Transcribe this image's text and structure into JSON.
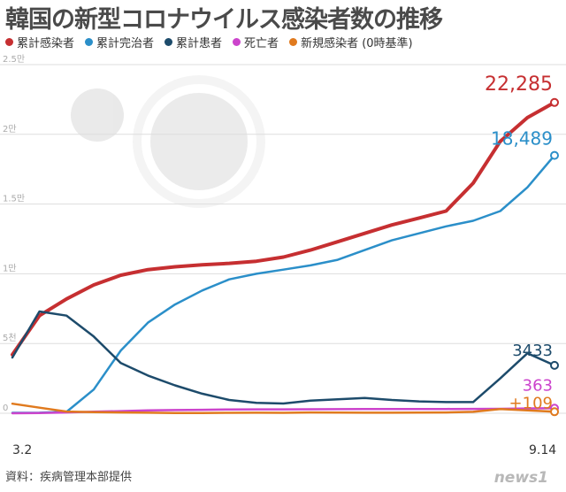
{
  "title": "韓国の新型コロナウイルス感染者数の推移",
  "legend": [
    {
      "label": "累計感染者",
      "color": "#c62f31"
    },
    {
      "label": "累計完治者",
      "color": "#2b8fc9"
    },
    {
      "label": "累計患者",
      "color": "#1d4b6b"
    },
    {
      "label": "死亡者",
      "color": "#cc44cc"
    },
    {
      "label": "新規感染者 (0時基準)",
      "color": "#e07a1e"
    }
  ],
  "source": "資料：疾病管理本部提供",
  "logo": "news1",
  "chart_data": {
    "type": "line",
    "x_start_label": "3.2",
    "x_end_label": "9.14",
    "ytick_labels": [
      "0",
      "5천",
      "1만",
      "1.5만",
      "2만",
      "2.5만"
    ],
    "ytick_values": [
      0,
      5000,
      10000,
      15000,
      20000,
      25000
    ],
    "ylim": [
      0,
      25000
    ],
    "grid": true,
    "series": [
      {
        "name": "累計感染者",
        "color": "#c62f31",
        "end_label": "22,285",
        "values": [
          4200,
          7000,
          8200,
          9200,
          9900,
          10300,
          10500,
          10650,
          10750,
          10900,
          11200,
          11700,
          12300,
          12900,
          13500,
          14000,
          14500,
          16500,
          19500,
          21200,
          22285
        ]
      },
      {
        "name": "累計完治者",
        "color": "#2b8fc9",
        "end_label": "18,489",
        "values": [
          30,
          40,
          100,
          1700,
          4500,
          6500,
          7800,
          8800,
          9600,
          10000,
          10300,
          10600,
          11000,
          11700,
          12400,
          12900,
          13400,
          13800,
          14500,
          16200,
          18489
        ]
      },
      {
        "name": "累計患者",
        "color": "#1d4b6b",
        "end_label": "3433",
        "values": [
          4000,
          7300,
          7000,
          5500,
          3600,
          2700,
          2000,
          1400,
          950,
          750,
          700,
          900,
          1000,
          1100,
          950,
          850,
          800,
          800,
          2500,
          4300,
          3433
        ]
      },
      {
        "name": "死亡者",
        "color": "#cc44cc",
        "end_label": "363",
        "values": [
          1,
          20,
          60,
          110,
          150,
          200,
          230,
          250,
          270,
          280,
          282,
          285,
          290,
          298,
          300,
          300,
          305,
          310,
          320,
          340,
          363
        ]
      },
      {
        "name": "新規感染者 (0時基準)",
        "color": "#e07a1e",
        "end_label": "+109",
        "values": [
          686,
          400,
          120,
          80,
          60,
          40,
          20,
          10,
          30,
          40,
          30,
          60,
          50,
          40,
          40,
          50,
          60,
          100,
          300,
          200,
          109
        ]
      }
    ]
  }
}
